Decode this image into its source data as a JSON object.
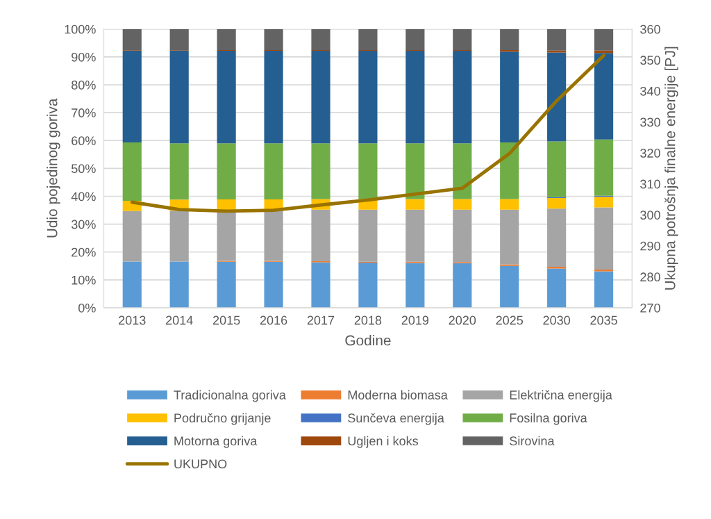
{
  "chart_data": {
    "type": "bar",
    "stacked": true,
    "categories": [
      "2013",
      "2014",
      "2015",
      "2016",
      "2017",
      "2018",
      "2019",
      "2020",
      "2025",
      "2030",
      "2035"
    ],
    "xlabel": "Godine",
    "ylabel": "Udio pojedinog goriva",
    "y2label": "Ukupna potrošnja finalne energije [PJ]",
    "ylim": [
      0,
      100
    ],
    "yticks": [
      {
        "value": 0,
        "label": "0%"
      },
      {
        "value": 10,
        "label": "10%"
      },
      {
        "value": 20,
        "label": "20%"
      },
      {
        "value": 30,
        "label": "30%"
      },
      {
        "value": 40,
        "label": "40%"
      },
      {
        "value": 50,
        "label": "50%"
      },
      {
        "value": 60,
        "label": "60%"
      },
      {
        "value": 70,
        "label": "70%"
      },
      {
        "value": 80,
        "label": "80%"
      },
      {
        "value": 90,
        "label": "90%"
      },
      {
        "value": 100,
        "label": "100%"
      }
    ],
    "y2lim": [
      270,
      360
    ],
    "y2ticks": [
      270,
      280,
      290,
      300,
      310,
      320,
      330,
      340,
      350,
      360
    ],
    "grid": "y",
    "legend": "bottom",
    "series": [
      {
        "name": "Tradicionalna goriva",
        "color": "#5b9bd5",
        "values": [
          16.6,
          16.6,
          16.5,
          16.5,
          16.3,
          16.2,
          16.1,
          16.0,
          15.0,
          14.1,
          13.1
        ]
      },
      {
        "name": "Moderna biomasa",
        "color": "#ed7d31",
        "values": [
          null,
          null,
          0.3,
          0.3,
          0.4,
          0.3,
          0.4,
          0.4,
          0.5,
          0.6,
          0.6
        ]
      },
      {
        "name": "Električna energija",
        "color": "#a5a5a5",
        "values": [
          18.1,
          18.2,
          17.6,
          17.9,
          18.5,
          18.7,
          18.7,
          18.8,
          19.7,
          20.9,
          22.3
        ]
      },
      {
        "name": "Područno grijanje",
        "color": "#ffc000",
        "values": [
          3.7,
          4.0,
          4.5,
          4.2,
          3.8,
          3.8,
          3.8,
          3.8,
          3.8,
          3.8,
          3.8
        ]
      },
      {
        "name": "Sunčeva energija",
        "color": "#4472c4",
        "values": [
          0,
          0,
          0,
          0,
          0,
          0,
          0,
          null,
          null,
          0.3,
          0.4
        ]
      },
      {
        "name": "Fosilna goriva",
        "color": "#70ad47",
        "values": [
          20.9,
          20.2,
          20.1,
          20.1,
          20.0,
          20.0,
          20.0,
          20.0,
          20.3,
          20.0,
          20.2
        ]
      },
      {
        "name": "Motorna goriva",
        "color": "#255e91",
        "values": [
          33.0,
          33.2,
          33.2,
          33.2,
          33.2,
          33.2,
          33.2,
          33.2,
          32.6,
          31.9,
          31.0
        ]
      },
      {
        "name": "Ugljen i koks",
        "color": "#9e480e",
        "values": [
          0.2,
          0.2,
          0.3,
          0.3,
          0.3,
          0.3,
          0.3,
          0.3,
          0.6,
          0.7,
          0.9
        ]
      },
      {
        "name": "Sirovina",
        "color": "#636363",
        "values": [
          7.5,
          7.6,
          7.5,
          7.5,
          7.5,
          7.5,
          7.5,
          7.5,
          7.5,
          7.7,
          7.7
        ]
      },
      {
        "name": "UKUPNO",
        "color": "#997300",
        "type": "line",
        "axis": "y2",
        "values": [
          304.1,
          301.7,
          301.2,
          301.5,
          303.2,
          304.8,
          306.7,
          308.6,
          319.8,
          336.8,
          351.5
        ]
      }
    ]
  }
}
